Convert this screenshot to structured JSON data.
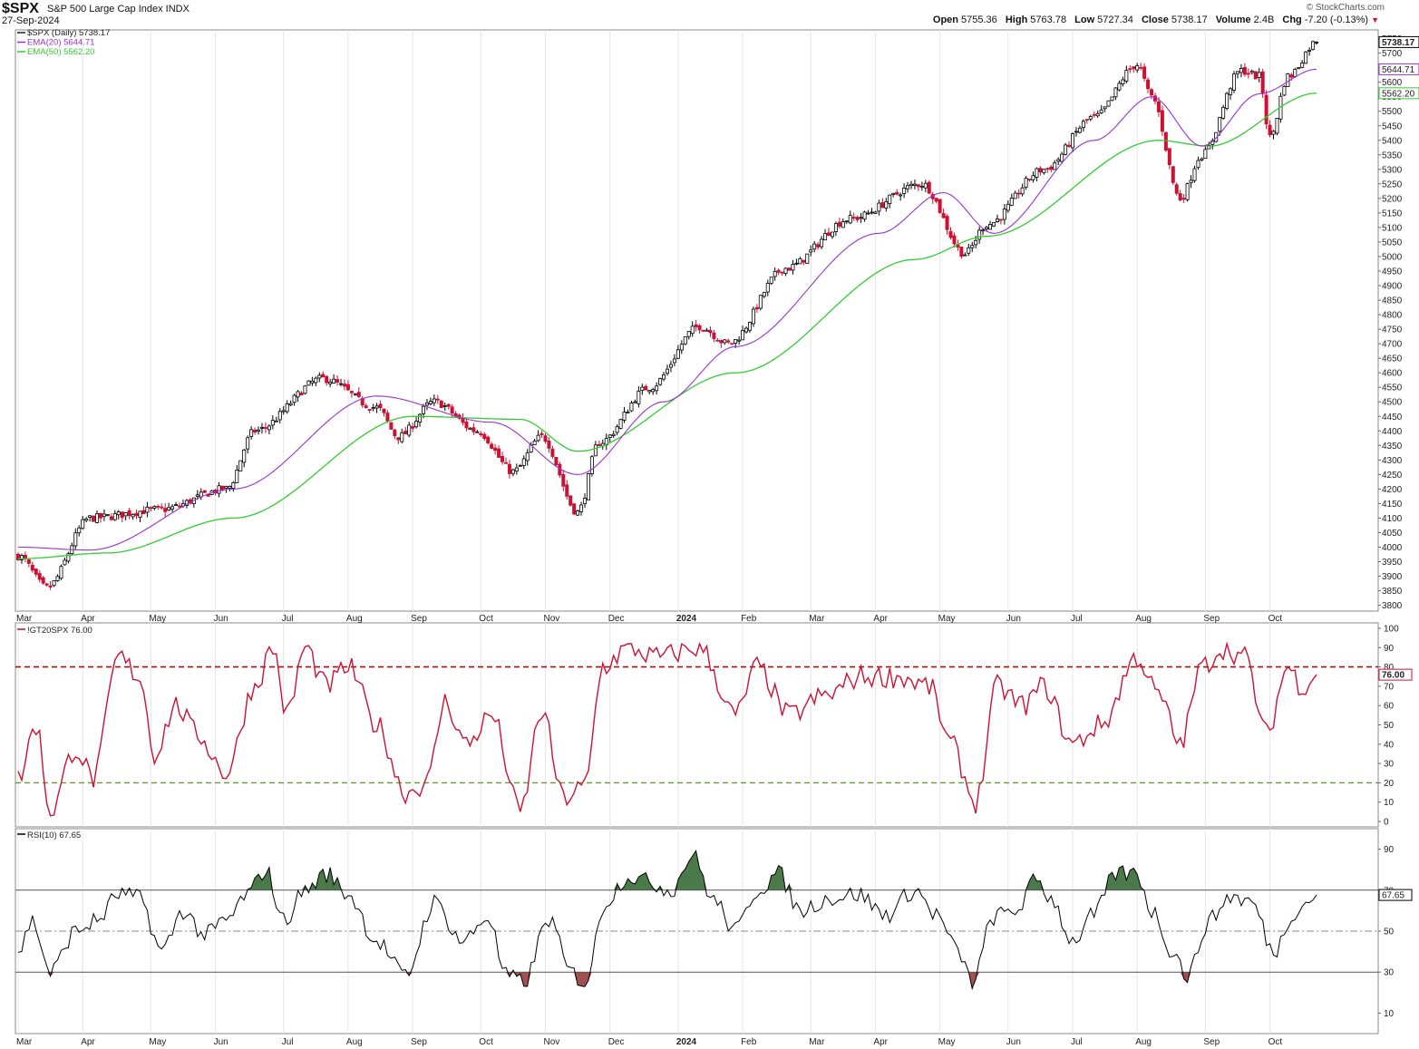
{
  "header": {
    "symbol": "$SPX",
    "description": "S&P 500 Large Cap Index INDX",
    "date": "27-Sep-2024",
    "brand": "© StockCharts.com",
    "open_label": "Open",
    "open": "5755.36",
    "high_label": "High",
    "high": "5763.78",
    "low_label": "Low",
    "low": "5727.34",
    "close_label": "Close",
    "close": "5738.17",
    "volume_label": "Volume",
    "volume": "2.4B",
    "chg_label": "Chg",
    "chg": "-7.20 (-0.13%)"
  },
  "colors": {
    "up": "#000000",
    "down": "#cc1133",
    "ema20": "#9933cc",
    "ema50": "#33cc33",
    "gt20": "#cc1133",
    "rsi": "#000000",
    "rsi_fill": "#4a7a4a"
  },
  "chart_data": [
    {
      "type": "candlestick",
      "legend": [
        "$SPX (Daily) 5738.17",
        "EMA(20) 5644.71",
        "EMA(50) 5562.20"
      ],
      "last_value_tags": [
        "5738.17",
        "5644.71",
        "5562.20"
      ],
      "ylim": [
        3780,
        5780
      ],
      "yticks": [
        3800,
        3850,
        3900,
        3950,
        4000,
        4050,
        4100,
        4150,
        4200,
        4250,
        4300,
        4350,
        4400,
        4450,
        4500,
        4550,
        4600,
        4650,
        4700,
        4750,
        4800,
        4850,
        4900,
        4950,
        5000,
        5050,
        5100,
        5150,
        5200,
        5250,
        5300,
        5350,
        5400,
        5450,
        5500,
        5550,
        5600,
        5650,
        5700,
        5750
      ],
      "x_months": [
        "Mar",
        "Apr",
        "May",
        "Jun",
        "Jul",
        "Aug",
        "Sep",
        "Oct",
        "Nov",
        "Dec",
        "2024",
        "Feb",
        "Mar",
        "Apr",
        "May",
        "Jun",
        "Jul",
        "Aug",
        "Sep",
        "Oct"
      ],
      "close_anchors": [
        {
          "t": 0,
          "v": 3970
        },
        {
          "t": 8,
          "v": 3860
        },
        {
          "t": 20,
          "v": 4100
        },
        {
          "t": 40,
          "v": 4130
        },
        {
          "t": 58,
          "v": 4200
        },
        {
          "t": 66,
          "v": 4400
        },
        {
          "t": 85,
          "v": 4580
        },
        {
          "t": 100,
          "v": 4480
        },
        {
          "t": 106,
          "v": 4380
        },
        {
          "t": 116,
          "v": 4500
        },
        {
          "t": 128,
          "v": 4400
        },
        {
          "t": 138,
          "v": 4260
        },
        {
          "t": 146,
          "v": 4380
        },
        {
          "t": 156,
          "v": 4120
        },
        {
          "t": 162,
          "v": 4360
        },
        {
          "t": 176,
          "v": 4550
        },
        {
          "t": 190,
          "v": 4760
        },
        {
          "t": 198,
          "v": 4700
        },
        {
          "t": 214,
          "v": 4960
        },
        {
          "t": 232,
          "v": 5130
        },
        {
          "t": 252,
          "v": 5250
        },
        {
          "t": 264,
          "v": 5010
        },
        {
          "t": 270,
          "v": 5110
        },
        {
          "t": 286,
          "v": 5300
        },
        {
          "t": 300,
          "v": 5480
        },
        {
          "t": 312,
          "v": 5660
        },
        {
          "t": 316,
          "v": 5550
        },
        {
          "t": 324,
          "v": 5200
        },
        {
          "t": 330,
          "v": 5350
        },
        {
          "t": 341,
          "v": 5640
        },
        {
          "t": 346,
          "v": 5620
        },
        {
          "t": 349,
          "v": 5410
        },
        {
          "t": 354,
          "v": 5620
        },
        {
          "t": 362,
          "v": 5738.17
        }
      ],
      "ema_anchors": {
        "ema20": [
          {
            "t": 0,
            "v": 4000
          },
          {
            "t": 20,
            "v": 3990
          },
          {
            "t": 60,
            "v": 4200
          },
          {
            "t": 100,
            "v": 4520
          },
          {
            "t": 132,
            "v": 4430
          },
          {
            "t": 156,
            "v": 4250
          },
          {
            "t": 180,
            "v": 4500
          },
          {
            "t": 200,
            "v": 4690
          },
          {
            "t": 240,
            "v": 5080
          },
          {
            "t": 258,
            "v": 5220
          },
          {
            "t": 272,
            "v": 5080
          },
          {
            "t": 300,
            "v": 5400
          },
          {
            "t": 316,
            "v": 5550
          },
          {
            "t": 330,
            "v": 5380
          },
          {
            "t": 346,
            "v": 5560
          },
          {
            "t": 362,
            "v": 5644.71
          }
        ],
        "ema50": [
          {
            "t": 0,
            "v": 3960
          },
          {
            "t": 25,
            "v": 3980
          },
          {
            "t": 60,
            "v": 4100
          },
          {
            "t": 110,
            "v": 4450
          },
          {
            "t": 140,
            "v": 4440
          },
          {
            "t": 156,
            "v": 4330
          },
          {
            "t": 200,
            "v": 4600
          },
          {
            "t": 250,
            "v": 4990
          },
          {
            "t": 270,
            "v": 5070
          },
          {
            "t": 318,
            "v": 5400
          },
          {
            "t": 332,
            "v": 5380
          },
          {
            "t": 362,
            "v": 5562.2
          }
        ]
      }
    },
    {
      "type": "line",
      "legend": "!GT20SPX 76.00",
      "last_value_tag": "76.00",
      "ylim": [
        0,
        100
      ],
      "yticks": [
        0,
        10,
        20,
        30,
        40,
        50,
        60,
        70,
        80,
        90,
        100
      ],
      "upper_ref": 80,
      "lower_ref": 20,
      "anchors": [
        {
          "t": 0,
          "v": 22
        },
        {
          "t": 5,
          "v": 50
        },
        {
          "t": 9,
          "v": 5
        },
        {
          "t": 16,
          "v": 38
        },
        {
          "t": 21,
          "v": 22
        },
        {
          "t": 28,
          "v": 85
        },
        {
          "t": 34,
          "v": 75
        },
        {
          "t": 38,
          "v": 35
        },
        {
          "t": 44,
          "v": 60
        },
        {
          "t": 50,
          "v": 45
        },
        {
          "t": 58,
          "v": 25
        },
        {
          "t": 66,
          "v": 70
        },
        {
          "t": 71,
          "v": 90
        },
        {
          "t": 75,
          "v": 55
        },
        {
          "t": 80,
          "v": 90
        },
        {
          "t": 86,
          "v": 70
        },
        {
          "t": 92,
          "v": 80
        },
        {
          "t": 100,
          "v": 50
        },
        {
          "t": 108,
          "v": 15
        },
        {
          "t": 114,
          "v": 20
        },
        {
          "t": 119,
          "v": 62
        },
        {
          "t": 125,
          "v": 40
        },
        {
          "t": 132,
          "v": 55
        },
        {
          "t": 140,
          "v": 5
        },
        {
          "t": 146,
          "v": 57
        },
        {
          "t": 152,
          "v": 12
        },
        {
          "t": 158,
          "v": 18
        },
        {
          "t": 163,
          "v": 80
        },
        {
          "t": 170,
          "v": 90
        },
        {
          "t": 178,
          "v": 85
        },
        {
          "t": 190,
          "v": 90
        },
        {
          "t": 200,
          "v": 55
        },
        {
          "t": 206,
          "v": 80
        },
        {
          "t": 215,
          "v": 55
        },
        {
          "t": 225,
          "v": 65
        },
        {
          "t": 235,
          "v": 75
        },
        {
          "t": 245,
          "v": 75
        },
        {
          "t": 254,
          "v": 70
        },
        {
          "t": 260,
          "v": 40
        },
        {
          "t": 267,
          "v": 10
        },
        {
          "t": 273,
          "v": 70
        },
        {
          "t": 280,
          "v": 60
        },
        {
          "t": 286,
          "v": 70
        },
        {
          "t": 294,
          "v": 40
        },
        {
          "t": 302,
          "v": 50
        },
        {
          "t": 312,
          "v": 85
        },
        {
          "t": 318,
          "v": 65
        },
        {
          "t": 324,
          "v": 40
        },
        {
          "t": 330,
          "v": 80
        },
        {
          "t": 336,
          "v": 90
        },
        {
          "t": 342,
          "v": 85
        },
        {
          "t": 348,
          "v": 45
        },
        {
          "t": 354,
          "v": 80
        },
        {
          "t": 358,
          "v": 70
        },
        {
          "t": 362,
          "v": 76
        }
      ]
    },
    {
      "type": "line",
      "legend": "RSI(10) 67.65",
      "last_value_tag": "67.65",
      "ylim": [
        0,
        100
      ],
      "yticks": [
        10,
        30,
        50,
        70,
        90
      ],
      "overbought": 70,
      "oversold": 30,
      "mid": 50,
      "anchors": [
        {
          "t": 0,
          "v": 40
        },
        {
          "t": 4,
          "v": 55
        },
        {
          "t": 9,
          "v": 30
        },
        {
          "t": 16,
          "v": 50
        },
        {
          "t": 22,
          "v": 55
        },
        {
          "t": 28,
          "v": 68
        },
        {
          "t": 34,
          "v": 66
        },
        {
          "t": 40,
          "v": 40
        },
        {
          "t": 46,
          "v": 60
        },
        {
          "t": 52,
          "v": 48
        },
        {
          "t": 58,
          "v": 55
        },
        {
          "t": 64,
          "v": 68
        },
        {
          "t": 69,
          "v": 80
        },
        {
          "t": 74,
          "v": 55
        },
        {
          "t": 80,
          "v": 70
        },
        {
          "t": 86,
          "v": 78
        },
        {
          "t": 92,
          "v": 68
        },
        {
          "t": 100,
          "v": 45
        },
        {
          "t": 108,
          "v": 28
        },
        {
          "t": 116,
          "v": 64
        },
        {
          "t": 124,
          "v": 45
        },
        {
          "t": 131,
          "v": 57
        },
        {
          "t": 136,
          "v": 28
        },
        {
          "t": 141,
          "v": 25
        },
        {
          "t": 148,
          "v": 56
        },
        {
          "t": 154,
          "v": 30
        },
        {
          "t": 158,
          "v": 25
        },
        {
          "t": 164,
          "v": 65
        },
        {
          "t": 170,
          "v": 77
        },
        {
          "t": 176,
          "v": 74
        },
        {
          "t": 182,
          "v": 70
        },
        {
          "t": 188,
          "v": 87
        },
        {
          "t": 194,
          "v": 65
        },
        {
          "t": 200,
          "v": 50
        },
        {
          "t": 206,
          "v": 70
        },
        {
          "t": 212,
          "v": 78
        },
        {
          "t": 218,
          "v": 60
        },
        {
          "t": 226,
          "v": 66
        },
        {
          "t": 234,
          "v": 68
        },
        {
          "t": 242,
          "v": 58
        },
        {
          "t": 250,
          "v": 70
        },
        {
          "t": 256,
          "v": 58
        },
        {
          "t": 262,
          "v": 40
        },
        {
          "t": 266,
          "v": 25
        },
        {
          "t": 272,
          "v": 57
        },
        {
          "t": 278,
          "v": 60
        },
        {
          "t": 284,
          "v": 75
        },
        {
          "t": 288,
          "v": 66
        },
        {
          "t": 294,
          "v": 45
        },
        {
          "t": 300,
          "v": 58
        },
        {
          "t": 306,
          "v": 78
        },
        {
          "t": 312,
          "v": 78
        },
        {
          "t": 316,
          "v": 60
        },
        {
          "t": 322,
          "v": 40
        },
        {
          "t": 326,
          "v": 28
        },
        {
          "t": 332,
          "v": 55
        },
        {
          "t": 338,
          "v": 67
        },
        {
          "t": 344,
          "v": 64
        },
        {
          "t": 350,
          "v": 40
        },
        {
          "t": 356,
          "v": 60
        },
        {
          "t": 362,
          "v": 67.65
        }
      ]
    }
  ]
}
